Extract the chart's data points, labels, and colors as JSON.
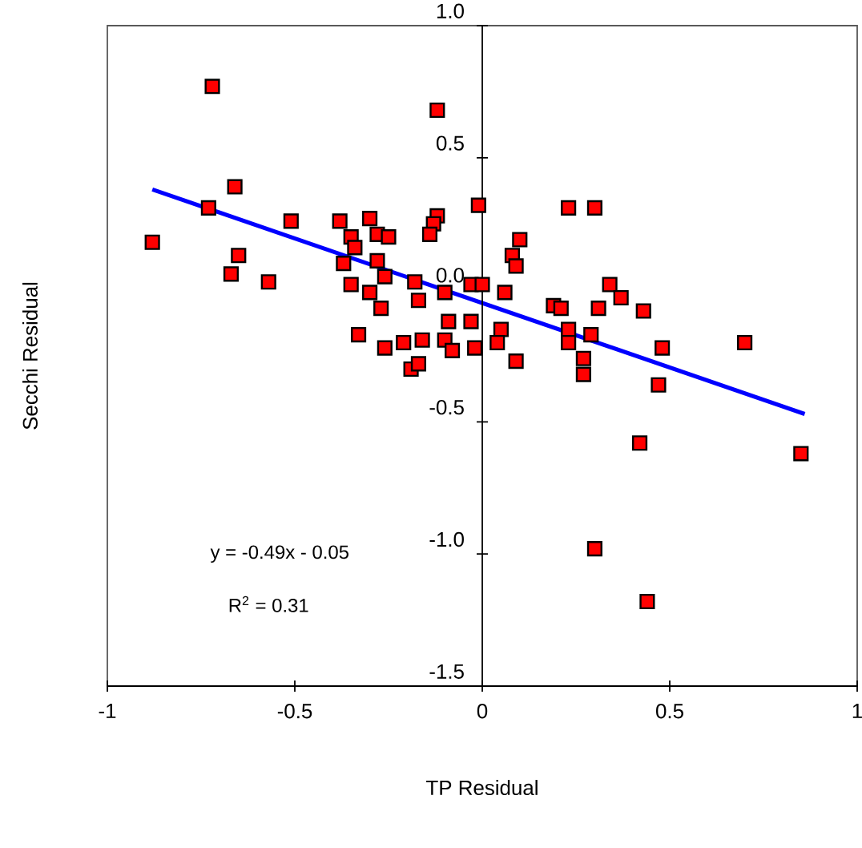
{
  "chart_data": {
    "type": "scatter",
    "xlabel": "TP Residual",
    "ylabel": "Secchi Residual",
    "xlim": [
      -1,
      1
    ],
    "ylim": [
      -1.5,
      1.0
    ],
    "xticks": [
      {
        "value": -1,
        "label": "-1"
      },
      -0.5,
      0,
      0.5,
      {
        "value": 1,
        "label": "1"
      }
    ],
    "yticks": [
      {
        "value": -1.5,
        "label": "-1.5"
      },
      {
        "value": -1.0,
        "label": "-1.0"
      },
      -0.5,
      {
        "value": 0,
        "label": "0.0"
      },
      0.5,
      {
        "value": 1.0,
        "label": "1.0"
      }
    ],
    "grid": false,
    "marker": "square",
    "annotations": [
      "y = -0.49x - 0.05",
      "R$^{2}$ = 0.31"
    ],
    "series": [
      {
        "color": "#ff0000",
        "x": [
          -0.72,
          -0.12,
          -0.66,
          -0.73,
          -0.88,
          -0.65,
          -0.67,
          -0.57,
          -0.51,
          -0.38,
          -0.3,
          -0.35,
          -0.34,
          -0.28,
          -0.25,
          -0.12,
          -0.13,
          -0.14,
          -0.01,
          -0.37,
          -0.28,
          -0.26,
          -0.35,
          -0.3,
          -0.27,
          -0.18,
          -0.17,
          -0.1,
          -0.03,
          -0.09,
          -0.03,
          -0.33,
          -0.26,
          -0.21,
          -0.16,
          -0.1,
          -0.08,
          -0.02,
          -0.19,
          -0.17,
          0.23,
          0.3,
          0.1,
          0.08,
          0.09,
          0.0,
          0.06,
          0.34,
          0.37,
          0.43,
          0.19,
          0.21,
          0.31,
          0.05,
          0.23,
          0.29,
          0.04,
          0.23,
          0.09,
          0.27,
          0.48,
          0.7,
          0.47,
          0.27,
          0.42,
          0.85,
          0.3,
          0.44
        ],
        "values": [
          0.77,
          0.68,
          0.39,
          0.31,
          0.18,
          0.13,
          0.06,
          0.03,
          0.26,
          0.26,
          0.27,
          0.2,
          0.16,
          0.21,
          0.2,
          0.28,
          0.25,
          0.21,
          0.32,
          0.1,
          0.11,
          0.05,
          0.02,
          -0.01,
          -0.07,
          0.03,
          -0.04,
          -0.01,
          0.02,
          -0.12,
          -0.12,
          -0.17,
          -0.22,
          -0.2,
          -0.19,
          -0.19,
          -0.23,
          -0.22,
          -0.3,
          -0.28,
          0.31,
          0.31,
          0.19,
          0.13,
          0.09,
          0.02,
          -0.01,
          0.02,
          -0.03,
          -0.08,
          -0.06,
          -0.07,
          -0.07,
          -0.15,
          -0.15,
          -0.17,
          -0.2,
          -0.2,
          -0.27,
          -0.26,
          -0.22,
          -0.2,
          -0.36,
          -0.32,
          -0.58,
          -0.62,
          -0.98,
          -1.18
        ]
      },
      {
        "type": "line",
        "color": "#0000ff",
        "marker": "none",
        "line_style": "solid",
        "x": [
          -0.88,
          0.86
        ],
        "values": [
          0.38,
          -0.47
        ]
      }
    ]
  }
}
